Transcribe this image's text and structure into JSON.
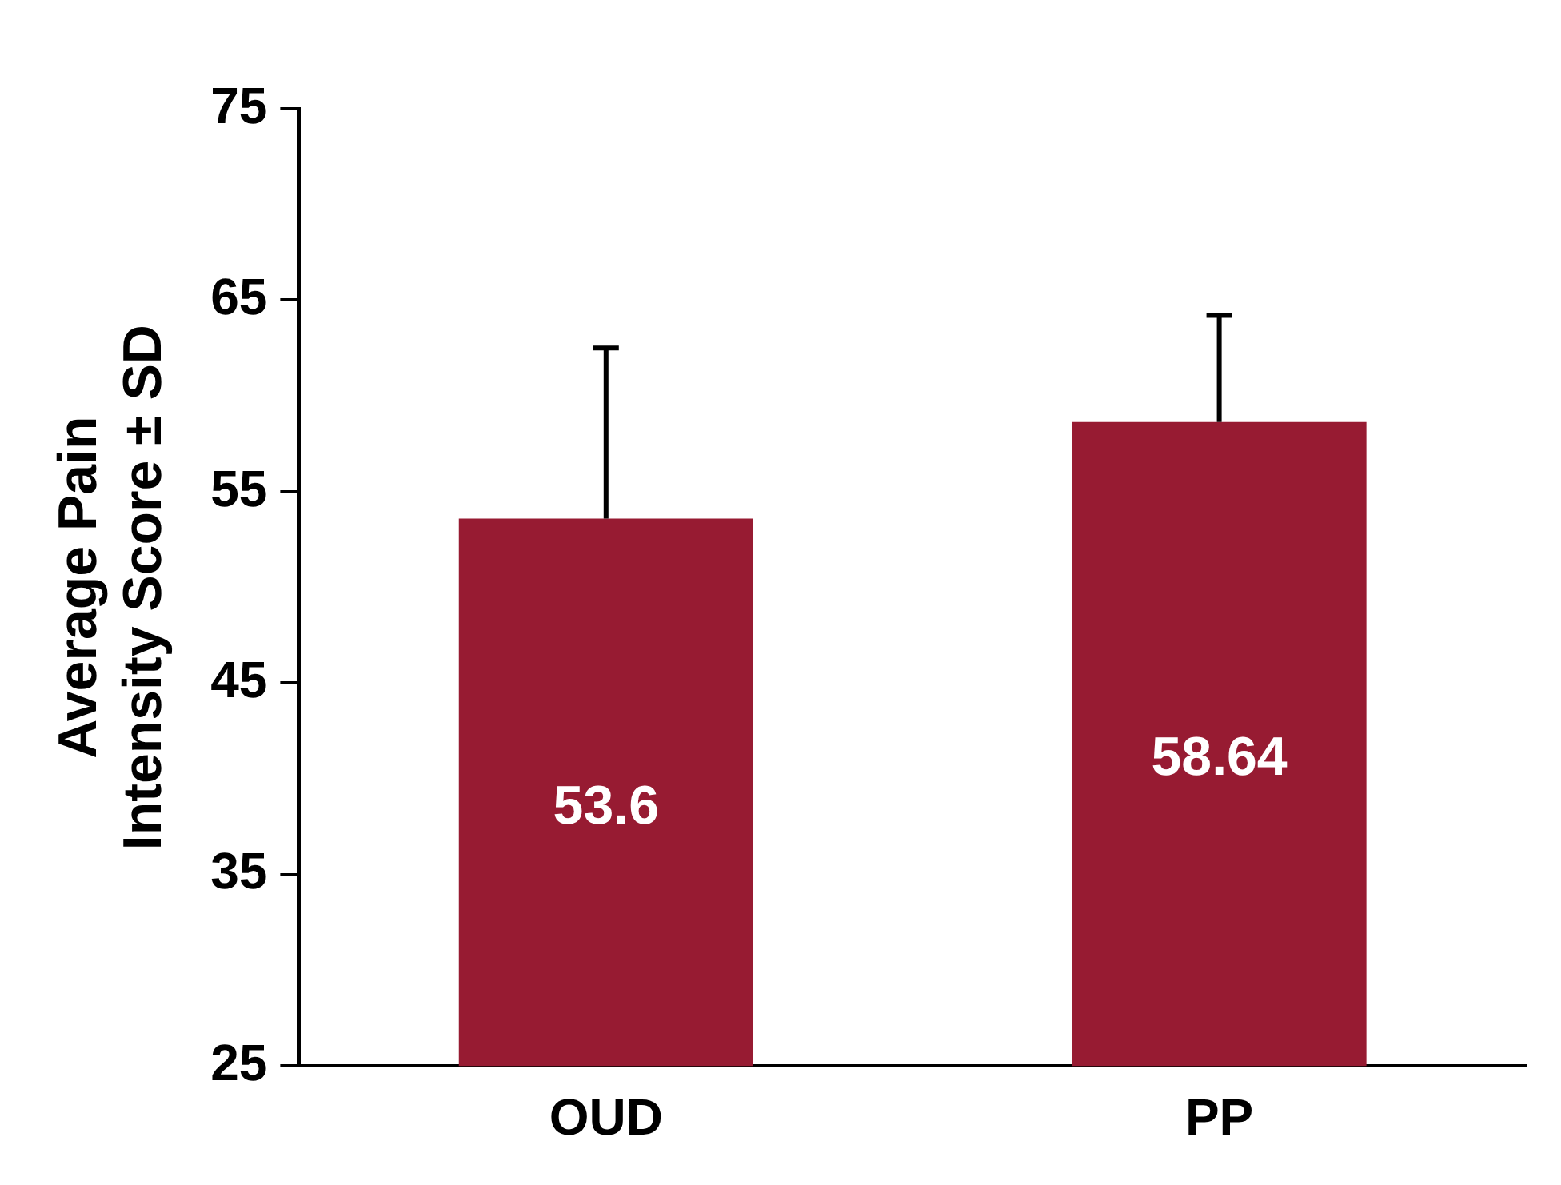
{
  "chart_data": {
    "type": "bar",
    "ylabel": "Average Pain Intensity Score ± SD",
    "categories": [
      "OUD",
      "PP"
    ],
    "values": [
      53.6,
      58.64
    ],
    "color": "#971b32",
    "errors": [
      [
        53.6,
        62.5
      ],
      [
        58.64,
        64.2
      ]
    ],
    "ylim": [
      25,
      75
    ],
    "yticks": [
      25,
      35,
      45,
      55,
      65,
      75
    ],
    "grid": false,
    "legend": false,
    "data_labels": true
  }
}
